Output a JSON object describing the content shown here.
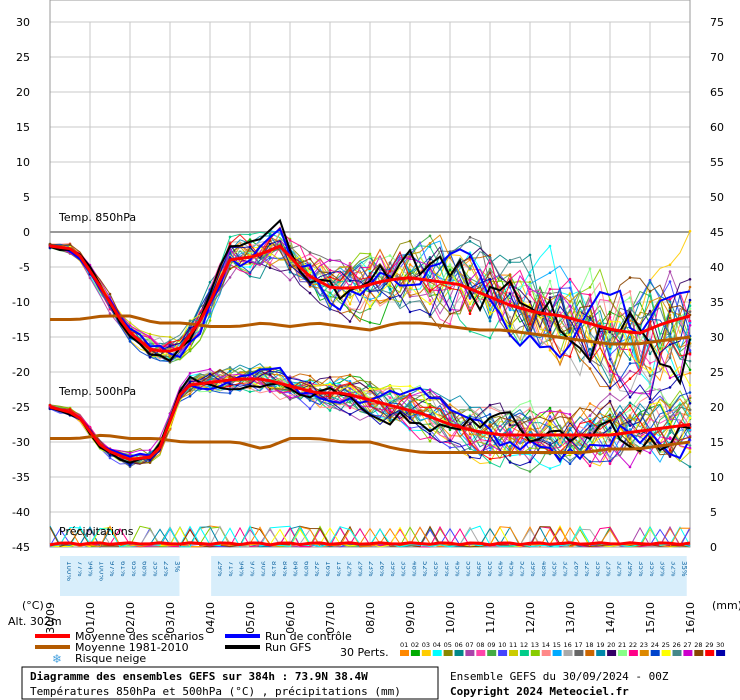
{
  "chart_data": {
    "type": "line",
    "title": "Diagramme des ensembles GEFS sur 384h : 73.9N 38.4W",
    "subtitle": "Températures 850hPa et 500hPa (°C) , précipitations (mm)",
    "run_info": "Ensemble GEFS du 30/09/2024 - 00Z",
    "copyright": "Copyright 2024 Meteociel.fr",
    "left_axis_unit": "(°C)",
    "right_axis_unit": "(mm)",
    "left_ticks": [
      30,
      25,
      20,
      15,
      10,
      5,
      0,
      -5,
      -10,
      -15,
      -20,
      -25,
      -30,
      -35,
      -40,
      -45
    ],
    "right_ticks": [
      75,
      70,
      65,
      60,
      55,
      50,
      45,
      40,
      35,
      30,
      25,
      20,
      15,
      10,
      5,
      0
    ],
    "ylim": [
      -45,
      30
    ],
    "right_ylim": [
      0,
      75
    ],
    "x_labels": [
      "30/09",
      "01/10",
      "02/10",
      "03/10",
      "04/10",
      "05/10",
      "06/10",
      "07/10",
      "08/10",
      "09/10",
      "10/10",
      "11/10",
      "12/10",
      "13/10",
      "14/10",
      "15/10",
      "16/10"
    ],
    "altitude_label": "Alt. 302m",
    "panel_labels": {
      "t850": "Temp. 850hPa",
      "t500": "Temp. 500hPa",
      "precip": "Précipitations"
    },
    "snow_risk_pct": [
      "100%",
      "77%",
      "94%",
      "100%",
      "97%",
      "61%",
      "65%",
      "68%",
      "35%",
      "23%",
      "3%",
      "",
      "",
      "",
      "29%",
      "71%",
      "94%",
      "97%",
      "90%",
      "81%",
      "84%",
      "84%",
      "68%",
      "32%",
      "16%",
      "13%",
      "32%",
      "29%",
      "23%",
      "26%",
      "39%",
      "35%",
      "48%",
      "52%",
      "35%",
      "39%",
      "45%",
      "55%",
      "39%",
      "55%",
      "45%",
      "45%",
      "52%",
      "39%",
      "48%",
      "35%",
      "32%",
      "26%",
      "32%",
      "35%",
      "23%",
      "32%",
      "29%",
      "35%",
      "35%",
      "39%",
      "32%",
      "35%"
    ],
    "series": [
      {
        "name": "Moyenne des scénarios",
        "color": "#ff0000",
        "t850": [
          -2,
          -2.5,
          -8,
          -14,
          -17,
          -17,
          -12,
          -4,
          -3.5,
          -2,
          -6,
          -8,
          -8,
          -7,
          -6.5,
          -7,
          -7.5,
          -9,
          -10.5,
          -11.5,
          -12,
          -13,
          -14,
          -14.5,
          -13,
          -12
        ],
        "t500": [
          -25,
          -26,
          -31,
          -32.5,
          -32,
          -22,
          -21.5,
          -21,
          -21,
          -22,
          -23,
          -23,
          -24,
          -25,
          -26,
          -27.5,
          -28.5,
          -29,
          -29,
          -29,
          -29,
          -29,
          -28.5,
          -28,
          -27.5
        ]
      },
      {
        "name": "Moyenne 1981-2010",
        "color": "#b35a00",
        "t850": [
          -12.5,
          -12.5,
          -12,
          -12,
          -13,
          -13,
          -13.5,
          -13.5,
          -13,
          -13.5,
          -13,
          -13.5,
          -14,
          -13,
          -13,
          -13.5,
          -14,
          -14,
          -14.5,
          -15,
          -15.5,
          -16,
          -16,
          -15.5,
          -15
        ],
        "t500": [
          -29.5,
          -29.5,
          -29,
          -29.5,
          -29.5,
          -30,
          -30,
          -30,
          -31,
          -29.5,
          -29.5,
          -30,
          -30,
          -31,
          -31.5,
          -31.5,
          -31.5,
          -31.5,
          -31.5,
          -31.5,
          -31.5,
          -31,
          -31,
          -30.5,
          -30
        ]
      },
      {
        "name": "Run de contrôle",
        "color": "#0000ff"
      },
      {
        "name": "Run GFS",
        "color": "#000000"
      }
    ],
    "legend_left": [
      {
        "label": "Moyenne des scénarios",
        "color": "#ff0000"
      },
      {
        "label": "Moyenne 1981-2010",
        "color": "#b35a00"
      },
      {
        "label": "Risque neige",
        "icon": "snowflake"
      }
    ],
    "legend_right": [
      {
        "label": "Run de contrôle",
        "color": "#0000ff"
      },
      {
        "label": "Run GFS",
        "color": "#000000"
      }
    ],
    "perts_label": "30 Perts.",
    "perts_numbers": [
      "01",
      "02",
      "03",
      "04",
      "05",
      "06",
      "07",
      "08",
      "09",
      "10",
      "11",
      "12",
      "13",
      "14",
      "15",
      "16",
      "17",
      "18",
      "19",
      "20",
      "21",
      "22",
      "23",
      "24",
      "25",
      "26",
      "27",
      "28",
      "29",
      "30"
    ],
    "perts_colors": [
      "#ff8800",
      "#00aa00",
      "#ffcc00",
      "#00ffff",
      "#888800",
      "#008888",
      "#aa44aa",
      "#ff44aa",
      "#44aa44",
      "#4444ff",
      "#cccc00",
      "#00cc88",
      "#88cc00",
      "#ff8888",
      "#00aaff",
      "#aaaaaa",
      "#666666",
      "#cc6600",
      "#0088aa",
      "#330066",
      "#88ff88",
      "#ff0088",
      "#dd8800",
      "#0044cc",
      "#ffff00",
      "#448888",
      "#cc00cc",
      "#884400",
      "#ff0000",
      "#0000aa"
    ]
  }
}
